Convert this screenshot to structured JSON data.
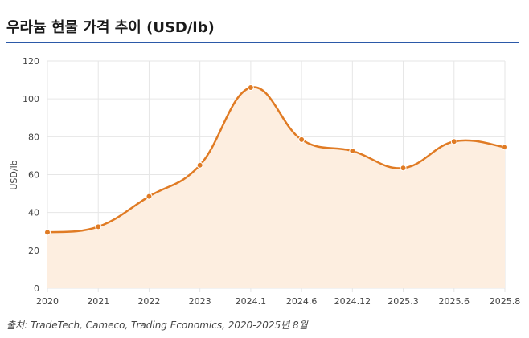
{
  "title": "우라늄 현물 가격 추이 (USD/lb)",
  "source": "출처: TradeTech, Cameco, Trading Economics, 2020-2025년 8월",
  "colors": {
    "line": "#e07b24",
    "fill": "#fdeee0",
    "grid": "#e6e6e6",
    "title_rule": "#2b59a8"
  },
  "chart_data": {
    "type": "area",
    "categories": [
      "2020",
      "2021",
      "2022",
      "2023",
      "2024.1",
      "2024.6",
      "2024.12",
      "2025.3",
      "2025.6",
      "2025.8"
    ],
    "series": [
      {
        "values": [
          29.5,
          32.5,
          48.5,
          65,
          106,
          78.5,
          72.5,
          63.5,
          77.5,
          74.5
        ]
      }
    ],
    "ylabel": "USD/lb",
    "xlabel": "",
    "ylim": [
      0,
      120
    ],
    "yticks": [
      0,
      20,
      40,
      60,
      80,
      100,
      120
    ],
    "grid": true,
    "smooth": true
  }
}
